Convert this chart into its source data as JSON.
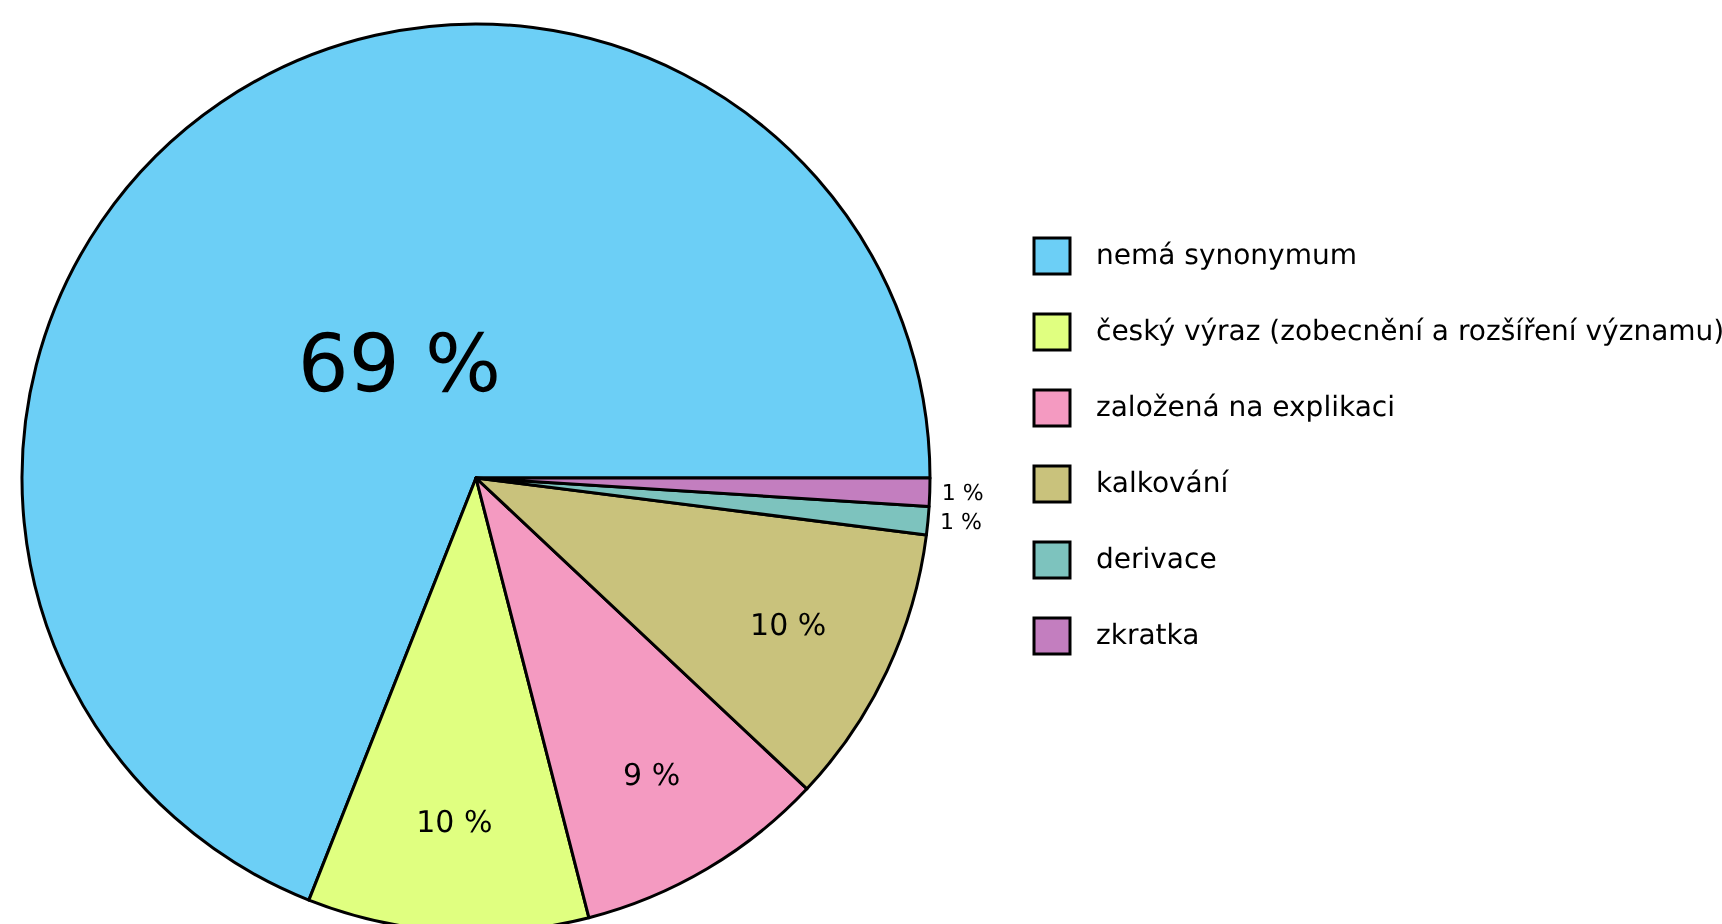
{
  "chart_data": {
    "type": "pie",
    "categories": [
      "nemá synonymum",
      "český výraz (zobecnění a rozšíření významu)",
      "založená na explikaci",
      "kalkování",
      "derivace",
      "zkratka"
    ],
    "values": [
      69,
      10,
      9,
      10,
      1,
      1
    ],
    "value_labels": [
      "69 %",
      "10 %",
      "9 %",
      "10 %",
      "1 %",
      "1 %"
    ],
    "colors": [
      "#6ccff6",
      "#e0ff80",
      "#f49ac1",
      "#c9c27c",
      "#7dc3be",
      "#c37ebf"
    ],
    "legend": "right"
  }
}
